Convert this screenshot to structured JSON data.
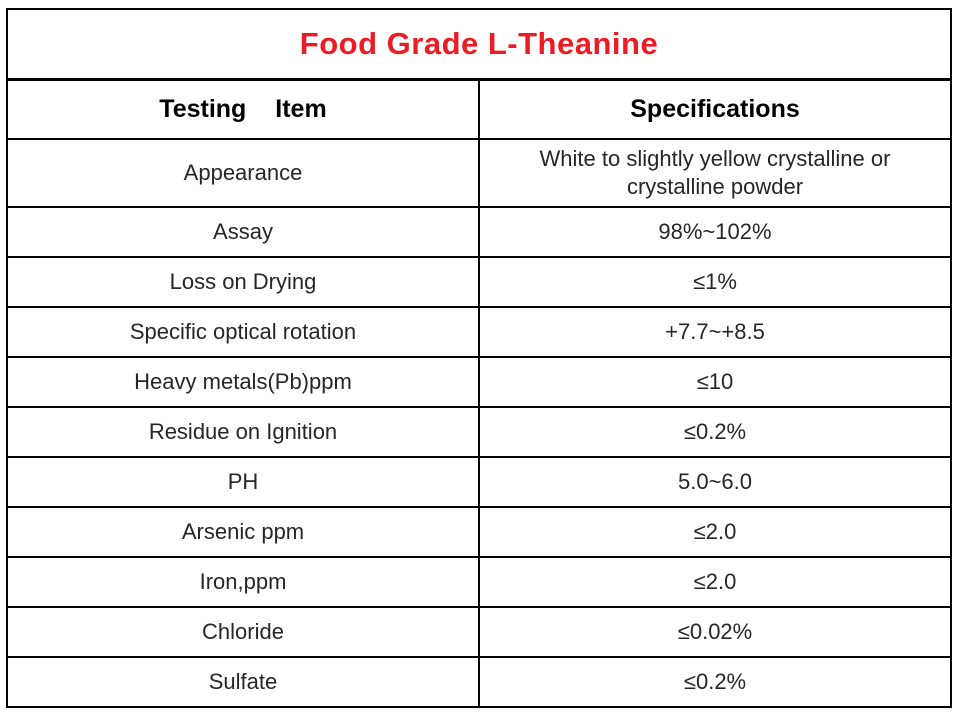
{
  "title": "Food Grade L-Theanine",
  "title_color": "#ed1c24",
  "border_color": "#000000",
  "table": {
    "headers": [
      "Testing Item",
      "Specifications"
    ],
    "rows": [
      {
        "item": "Appearance",
        "spec": "White to slightly yellow crystalline or crystalline powder"
      },
      {
        "item": "Assay",
        "spec": "98%~102%"
      },
      {
        "item": "Loss on Drying",
        "spec": "≤1%"
      },
      {
        "item": "Specific optical rotation",
        "spec": "+7.7~+8.5"
      },
      {
        "item": "Heavy metals(Pb)ppm",
        "spec": "≤10"
      },
      {
        "item": "Residue on Ignition",
        "spec": "≤0.2%"
      },
      {
        "item": "PH",
        "spec": "5.0~6.0"
      },
      {
        "item": "Arsenic ppm",
        "spec": "≤2.0"
      },
      {
        "item": "Iron,ppm",
        "spec": "≤2.0"
      },
      {
        "item": "Chloride",
        "spec": "≤0.02%"
      },
      {
        "item": "Sulfate",
        "spec": "≤0.2%"
      }
    ]
  }
}
